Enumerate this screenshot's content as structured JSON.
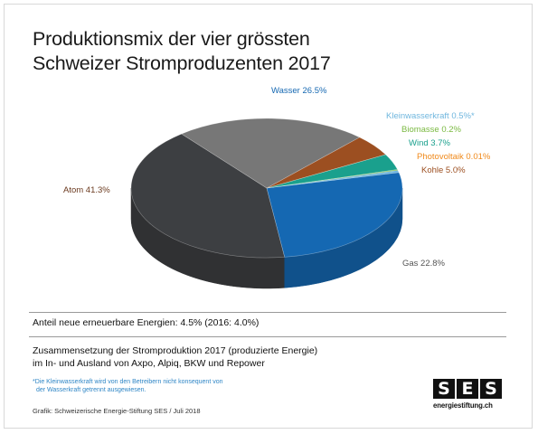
{
  "title": {
    "line1": "Produktionsmix der vier grössten",
    "line2": "Schweizer Stromproduzenten 2017"
  },
  "colors": {
    "wasser": "#1568b2",
    "klein": "#6fb6de",
    "biomasse": "#7ab941",
    "wind": "#1aa08d",
    "photovoltaik": "#f08a1c",
    "kohle": "#9c4f21",
    "gas": "#777777",
    "atom": "#3d3f42"
  },
  "chart_data": {
    "type": "pie",
    "title": "Produktionsmix der vier grössten Schweizer Stromproduzenten 2017",
    "unit": "%",
    "slices": [
      {
        "name": "Atom",
        "value": 41.3,
        "label": "Atom 41.3%",
        "color": "#3d3f42"
      },
      {
        "name": "Wasser",
        "value": 26.5,
        "label": "Wasser 26.5%",
        "color": "#1568b2"
      },
      {
        "name": "Kleinwasserkraft",
        "value": 0.5,
        "label": "Kleinwasserkraft 0.5%*",
        "color": "#6fb6de"
      },
      {
        "name": "Biomasse",
        "value": 0.2,
        "label": "Biomasse 0.2%",
        "color": "#7ab941"
      },
      {
        "name": "Wind",
        "value": 3.7,
        "label": "Wind 3.7%",
        "color": "#1aa08d"
      },
      {
        "name": "Photovoltaik",
        "value": 0.01,
        "label": "Photovoltaik 0.01%",
        "color": "#f08a1c"
      },
      {
        "name": "Kohle",
        "value": 5.0,
        "label": "Kohle 5.0%",
        "color": "#9c4f21"
      },
      {
        "name": "Gas",
        "value": 22.8,
        "label": "Gas 22.8%",
        "color": "#777777"
      }
    ]
  },
  "renewables": "Anteil neue erneuerbare Energien: 4.5% (2016: 4.0%)",
  "description": {
    "line1": "Zusammensetzung der Stromproduktion 2017 (produzierte Energie)",
    "line2": "im In- und Ausland von Axpo, Alpiq, BKW und Repower"
  },
  "footnote": {
    "line1": "*Die Kleinwasserkraft wird von den Betreibern nicht konsequent von",
    "line2": "der Wasserkraft getrennt ausgewiesen."
  },
  "source": "Grafik: Schweizerische Energie-Stiftung SES / Juli 2018",
  "logo": {
    "letters": [
      "S",
      "E",
      "S"
    ],
    "url": "energiestiftung.ch"
  }
}
